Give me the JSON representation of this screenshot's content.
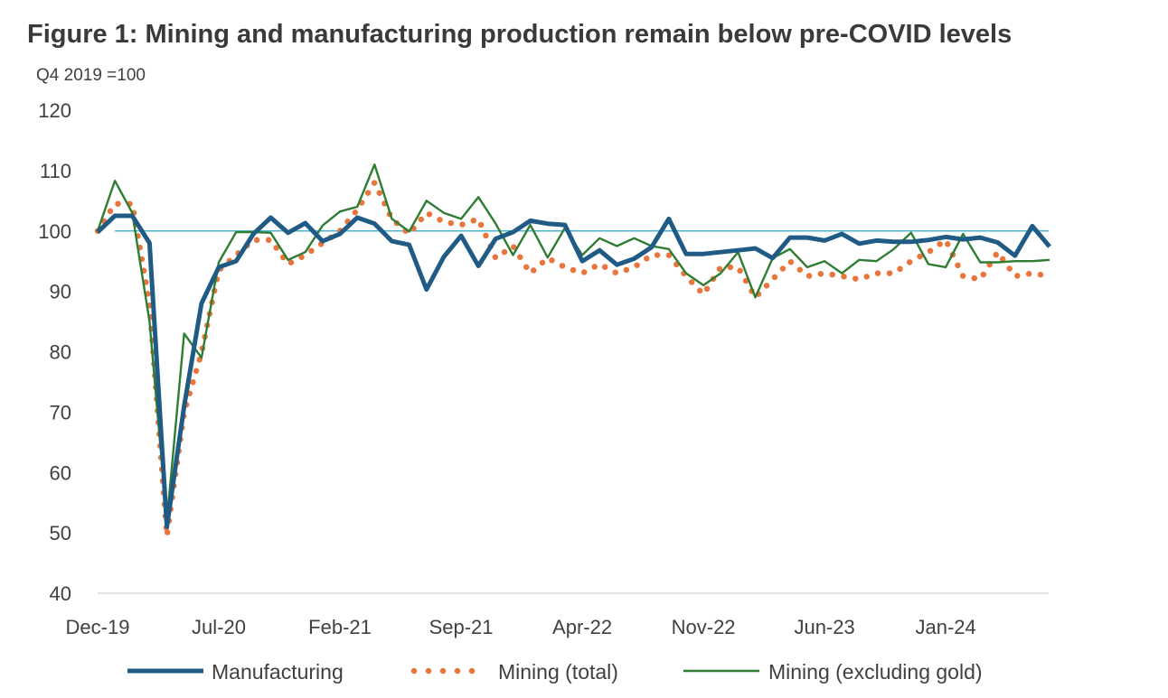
{
  "chart_data": {
    "type": "line",
    "title": "Figure 1: Mining and manufacturing production remain below pre-COVID levels",
    "subtitle": "Q4 2019 =100",
    "ylim": [
      40,
      120
    ],
    "yticks": [
      40,
      50,
      60,
      70,
      80,
      90,
      100,
      110,
      120
    ],
    "x_start": "Dec-19",
    "x_tick_labels": [
      "Dec-19",
      "Jul-20",
      "Feb-21",
      "Sep-21",
      "Apr-22",
      "Nov-22",
      "Jun-23",
      "Jan-24"
    ],
    "x_tick_index": [
      0,
      7,
      14,
      21,
      28,
      35,
      42,
      49
    ],
    "reference_line": 100,
    "legend_position": "bottom",
    "series": [
      {
        "name": "Manufacturing",
        "color": "#1f5b84",
        "style": "thick-solid",
        "values": [
          99.8,
          102.5,
          102.5,
          98,
          51,
          71,
          88,
          94,
          95,
          99.5,
          102.2,
          99.7,
          101.3,
          98.3,
          99.5,
          102.2,
          101.2,
          98.3,
          97.7,
          90.3,
          95.7,
          99.2,
          94.2,
          98.7,
          99.8,
          101.7,
          101.2,
          101,
          95,
          96.8,
          94.4,
          95.4,
          97.3,
          102,
          96.2,
          96.2,
          96.5,
          96.8,
          97.1,
          95.5,
          98.9,
          98.9,
          98.4,
          99.5,
          97.9,
          98.4,
          98.2,
          98.2,
          98.5,
          99,
          98.6,
          98.9,
          98.1,
          95.9,
          100.8,
          97.4
        ]
      },
      {
        "name": "Mining (total)",
        "color": "#e8753c",
        "style": "dotted",
        "values": [
          100,
          104.5,
          104.5,
          88,
          49.5,
          70,
          79.8,
          93.5,
          96,
          98.5,
          98.5,
          94.5,
          96,
          98,
          100,
          103.5,
          108,
          102,
          99.5,
          103,
          101.5,
          101,
          102,
          95.5,
          97.5,
          93,
          95.5,
          94,
          93,
          94.5,
          93,
          94,
          96,
          96,
          92.5,
          89.5,
          94,
          94,
          89,
          92,
          95,
          92.5,
          93,
          92.5,
          92,
          93,
          93,
          95,
          96.5,
          98.5,
          92.5,
          92,
          96.5,
          92.5,
          93,
          92.5
        ]
      },
      {
        "name": "Mining (excluding gold)",
        "color": "#2e7d32",
        "style": "thin-solid",
        "values": [
          100,
          108.3,
          103,
          85,
          52,
          83,
          79,
          94.8,
          99.8,
          99.8,
          99.7,
          95.2,
          96.5,
          100.9,
          103.2,
          104,
          111,
          102,
          99.9,
          105,
          103,
          102,
          105.6,
          101.2,
          96,
          101,
          95.6,
          100.5,
          96,
          98.8,
          97.5,
          98.8,
          97.5,
          97,
          93,
          91,
          93,
          96.5,
          89,
          95.5,
          97,
          94,
          95,
          93,
          95.2,
          95,
          97,
          99.7,
          94.5,
          94,
          99.5,
          94.8,
          94.8,
          95,
          95,
          95.2
        ]
      }
    ]
  }
}
